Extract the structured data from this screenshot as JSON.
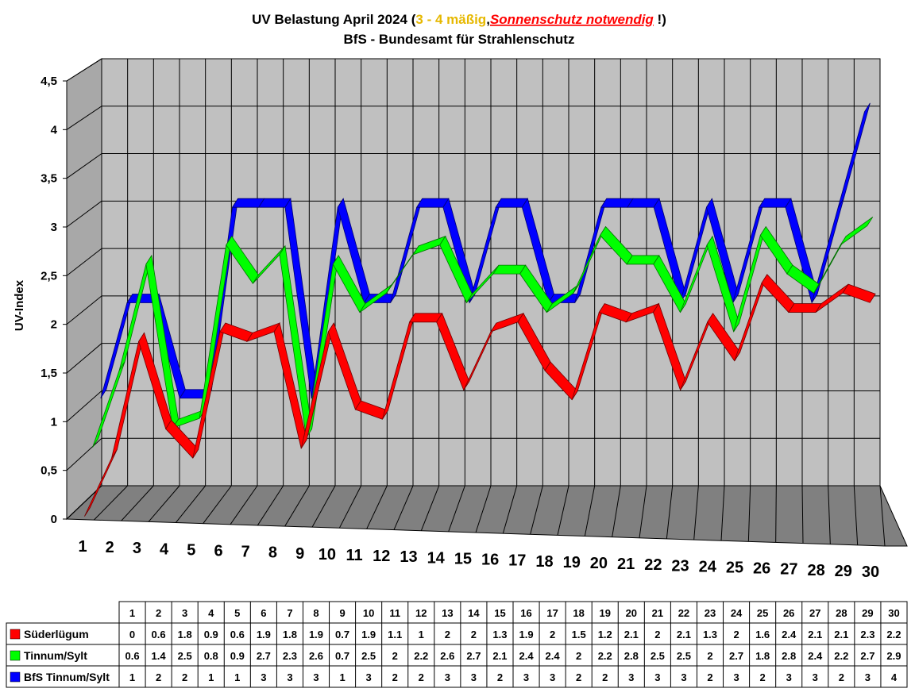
{
  "title": {
    "part1": "UV Belastung April 2024 (",
    "part2": "3 - 4 mäßig",
    "part3": ",",
    "part4": "Sonnenschutz notwendig",
    "part5": " !)",
    "line2": "BfS - Bundesamt für Strahlenschutz",
    "color_moderate": "#e6b800",
    "color_warning": "#ff0000"
  },
  "chart_data": {
    "type": "line",
    "title": "UV Belastung April 2024 (3 - 4 mäßig,Sonnenschutz notwendig !) BfS - Bundesamt für Strahlenschutz",
    "ylabel": "UV-Index",
    "xlabel": "",
    "ylim": [
      0,
      4.5
    ],
    "yticks": [
      0,
      0.5,
      1,
      1.5,
      2,
      2.5,
      3,
      3.5,
      4,
      4.5
    ],
    "ytick_labels": [
      "0",
      "0,5",
      "1",
      "1,5",
      "2",
      "2,5",
      "3",
      "3,5",
      "4",
      "4,5"
    ],
    "categories": [
      "1",
      "2",
      "3",
      "4",
      "5",
      "6",
      "7",
      "8",
      "9",
      "10",
      "11",
      "12",
      "13",
      "14",
      "15",
      "16",
      "17",
      "18",
      "19",
      "20",
      "21",
      "22",
      "23",
      "24",
      "25",
      "26",
      "27",
      "28",
      "29",
      "30"
    ],
    "series": [
      {
        "name": "Süderlügum",
        "color": "#ff0000",
        "values": [
          0,
          0.6,
          1.8,
          0.9,
          0.6,
          1.9,
          1.8,
          1.9,
          0.7,
          1.9,
          1.1,
          1,
          2,
          2,
          1.3,
          1.9,
          2,
          1.5,
          1.2,
          2.1,
          2,
          2.1,
          1.3,
          2,
          1.6,
          2.4,
          2.1,
          2.1,
          2.3,
          2.2
        ]
      },
      {
        "name": "Tinnum/Sylt",
        "color": "#00ff00",
        "values": [
          0.6,
          1.4,
          2.5,
          0.8,
          0.9,
          2.7,
          2.3,
          2.6,
          0.7,
          2.5,
          2,
          2.2,
          2.6,
          2.7,
          2.1,
          2.4,
          2.4,
          2,
          2.2,
          2.8,
          2.5,
          2.5,
          2,
          2.7,
          1.8,
          2.8,
          2.4,
          2.2,
          2.7,
          2.9
        ]
      },
      {
        "name": "BfS Tinnum/Sylt",
        "color": "#0000ff",
        "values": [
          1,
          2,
          2,
          1,
          1,
          3,
          3,
          3,
          1,
          3,
          2,
          2,
          3,
          3,
          2,
          3,
          3,
          2,
          2,
          3,
          3,
          3,
          2,
          3,
          2,
          3,
          3,
          2,
          3,
          4
        ]
      }
    ],
    "grid": true,
    "legend": "table-below"
  }
}
